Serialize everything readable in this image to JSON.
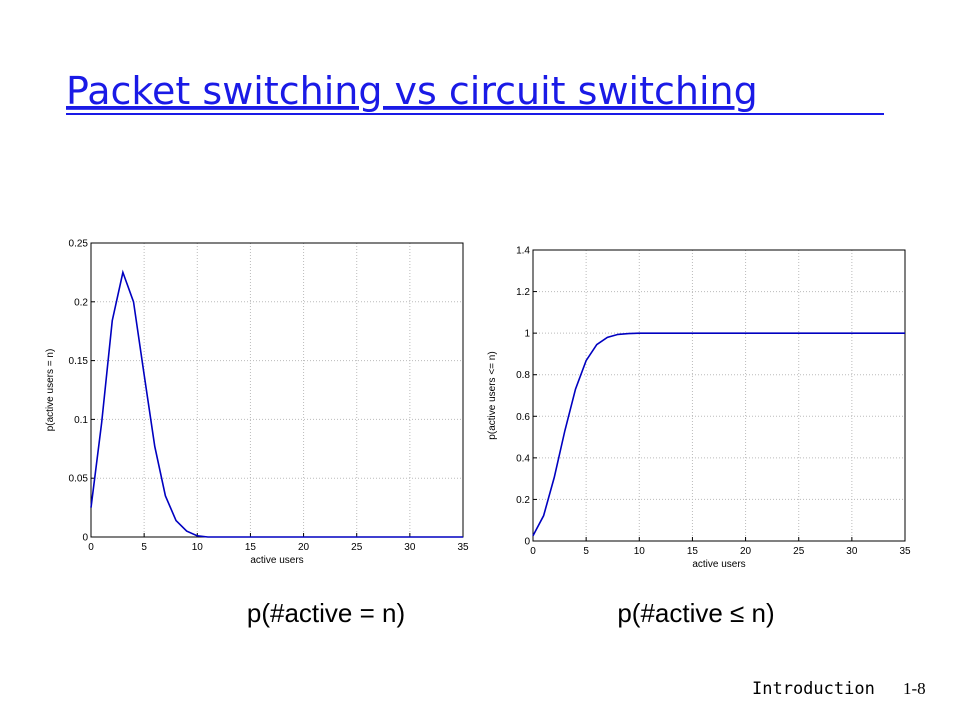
{
  "title": "Packet switching vs circuit switching",
  "captions": [
    "p(#active = n)",
    "p(#active ≤ n)"
  ],
  "footer": {
    "section": "Introduction",
    "page": "1-8"
  },
  "chart_data": [
    {
      "type": "line",
      "xlabel": "active users",
      "ylabel": "p(active users = n)",
      "x": [
        0,
        1,
        2,
        3,
        4,
        5,
        6,
        7,
        8,
        9,
        10,
        11,
        12,
        13,
        14,
        15,
        16,
        17,
        18,
        19,
        20,
        21,
        22,
        23,
        24,
        25,
        26,
        27,
        28,
        29,
        30,
        31,
        32,
        33,
        34,
        35
      ],
      "series": [
        {
          "color": "#0000c0",
          "values": [
            0.025,
            0.097,
            0.184,
            0.225,
            0.2,
            0.138,
            0.077,
            0.035,
            0.014,
            0.005,
            0.001,
            0,
            0,
            0,
            0,
            0,
            0,
            0,
            0,
            0,
            0,
            0,
            0,
            0,
            0,
            0,
            0,
            0,
            0,
            0,
            0,
            0,
            0,
            0,
            0,
            0
          ]
        }
      ],
      "xlim": [
        0,
        35
      ],
      "xticks": [
        0,
        5,
        10,
        15,
        20,
        25,
        30,
        35
      ],
      "ylim": [
        0,
        0.25
      ],
      "yticks": [
        0,
        0.05,
        0.1,
        0.15,
        0.2,
        0.25
      ],
      "grid": true
    },
    {
      "type": "line",
      "xlabel": "active users",
      "ylabel": "p(active users <= n)",
      "x": [
        0,
        1,
        2,
        3,
        4,
        5,
        6,
        7,
        8,
        9,
        10,
        11,
        12,
        13,
        14,
        15,
        16,
        17,
        18,
        19,
        20,
        21,
        22,
        23,
        24,
        25,
        26,
        27,
        28,
        29,
        30,
        31,
        32,
        33,
        34,
        35
      ],
      "series": [
        {
          "color": "#0000c0",
          "values": [
            0.025,
            0.122,
            0.306,
            0.531,
            0.731,
            0.868,
            0.945,
            0.98,
            0.994,
            0.998,
            1,
            1,
            1,
            1,
            1,
            1,
            1,
            1,
            1,
            1,
            1,
            1,
            1,
            1,
            1,
            1,
            1,
            1,
            1,
            1,
            1,
            1,
            1,
            1,
            1,
            1
          ]
        }
      ],
      "xlim": [
        0,
        35
      ],
      "xticks": [
        0,
        5,
        10,
        15,
        20,
        25,
        30,
        35
      ],
      "ylim": [
        0,
        1.4
      ],
      "yticks": [
        0,
        0.2,
        0.4,
        0.6,
        0.8,
        1,
        1.2,
        1.4
      ],
      "grid": true
    }
  ]
}
